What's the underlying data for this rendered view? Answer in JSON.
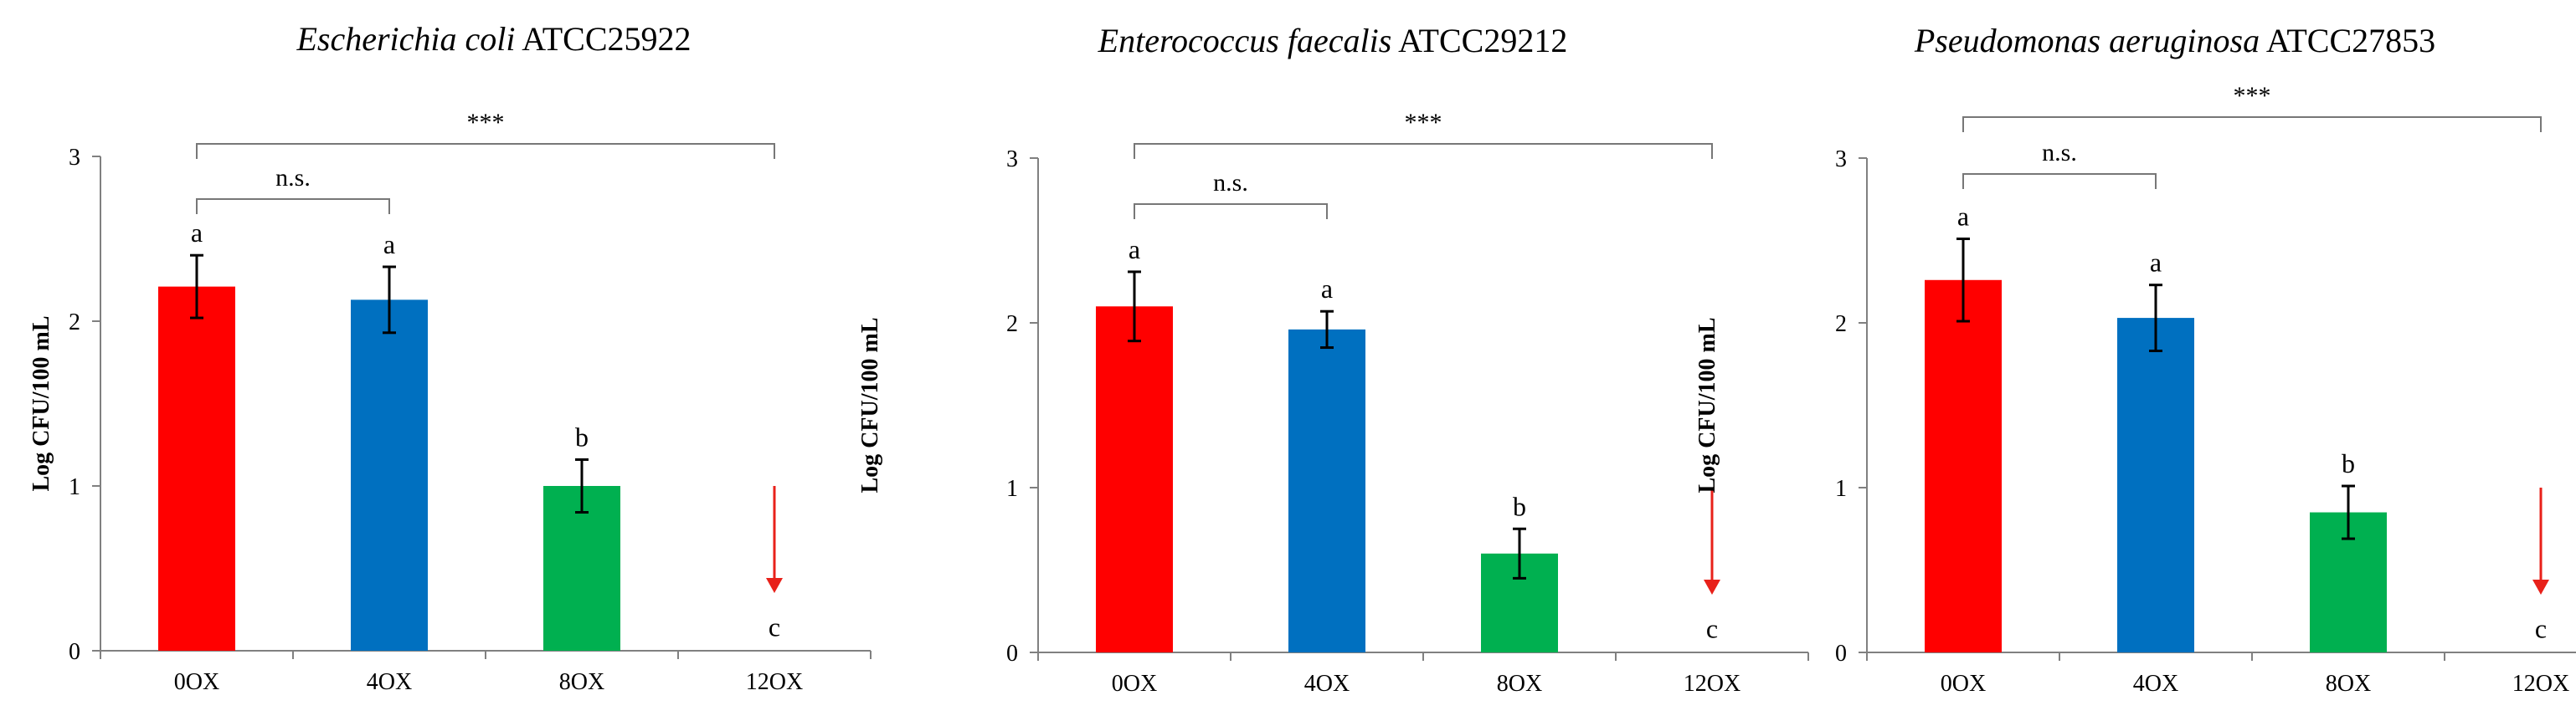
{
  "chart_data": [
    {
      "type": "bar",
      "title_italic": "Escherichia coli",
      "title_strain": "ATCC25922",
      "ylabel": "Log CFU/100 mL",
      "ylim": [
        0,
        3
      ],
      "yticks": [
        "0",
        "1",
        "2",
        "3"
      ],
      "categories": [
        "0OX",
        "4OX",
        "8OX",
        "12OX"
      ],
      "values": [
        2.21,
        2.13,
        1.0,
        0
      ],
      "errors": [
        0.19,
        0.2,
        0.16,
        0
      ],
      "colors": [
        "#ff0000",
        "#0070c0",
        "#00b050",
        "#ffffff"
      ],
      "letters": [
        "a",
        "a",
        "b",
        "c"
      ],
      "below_detection": [
        false,
        false,
        false,
        true
      ],
      "brackets": [
        {
          "from": 0,
          "to": 1,
          "label": "n.s."
        },
        {
          "from": 0,
          "to": 3,
          "label": "***"
        }
      ]
    },
    {
      "type": "bar",
      "title_italic": "Enterococcus faecalis",
      "title_strain": "ATCC29212",
      "ylabel": "Log CFU/100 mL",
      "ylim": [
        0,
        3
      ],
      "yticks": [
        "0",
        "1",
        "2",
        "3"
      ],
      "categories": [
        "0OX",
        "4OX",
        "8OX",
        "12OX"
      ],
      "values": [
        2.1,
        1.96,
        0.6,
        0
      ],
      "errors": [
        0.21,
        0.11,
        0.15,
        0
      ],
      "colors": [
        "#ff0000",
        "#0070c0",
        "#00b050",
        "#ffffff"
      ],
      "letters": [
        "a",
        "a",
        "b",
        "c"
      ],
      "below_detection": [
        false,
        false,
        false,
        true
      ],
      "brackets": [
        {
          "from": 0,
          "to": 1,
          "label": "n.s."
        },
        {
          "from": 0,
          "to": 3,
          "label": "***"
        }
      ]
    },
    {
      "type": "bar",
      "title_italic": "Pseudomonas aeruginosa",
      "title_strain": "ATCC27853",
      "ylabel": "Log CFU/100 mL",
      "ylim": [
        0,
        3
      ],
      "yticks": [
        "0",
        "1",
        "2",
        "3"
      ],
      "categories": [
        "0OX",
        "4OX",
        "8OX",
        "12OX"
      ],
      "values": [
        2.26,
        2.03,
        0.85,
        0
      ],
      "errors": [
        0.25,
        0.2,
        0.16,
        0
      ],
      "colors": [
        "#ff0000",
        "#0070c0",
        "#00b050",
        "#ffffff"
      ],
      "letters": [
        "a",
        "a",
        "b",
        "c"
      ],
      "below_detection": [
        false,
        false,
        false,
        true
      ],
      "brackets": [
        {
          "from": 0,
          "to": 1,
          "label": "n.s."
        },
        {
          "from": 0,
          "to": 3,
          "label": "***"
        }
      ]
    }
  ],
  "colors": {
    "bar_0ox": "#ff0000",
    "bar_4ox": "#0070c0",
    "bar_8ox": "#00b050",
    "arrow": "#e8211a",
    "axis": "#808080"
  }
}
